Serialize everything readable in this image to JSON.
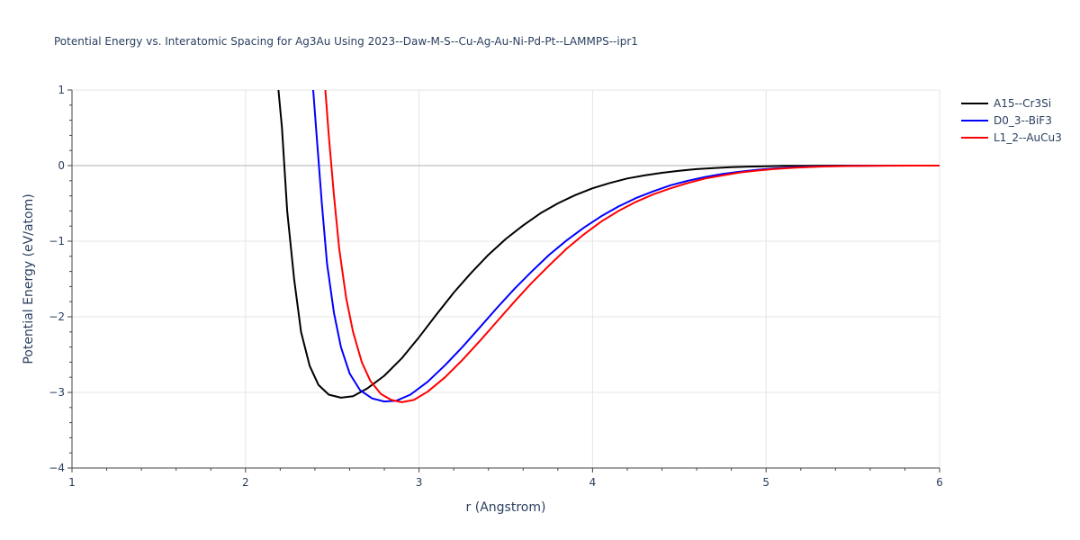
{
  "chart_data": {
    "type": "line",
    "title": "Potential Energy vs. Interatomic Spacing for Ag3Au Using 2023--Daw-M-S--Cu-Ag-Au-Ni-Pd-Pt--LAMMPS--ipr1",
    "xlabel": "r (Angstrom)",
    "ylabel": "Potential Energy (eV/atom)",
    "xlim": [
      1,
      6
    ],
    "ylim": [
      -4,
      1
    ],
    "x_ticks": [
      1,
      2,
      3,
      4,
      5,
      6
    ],
    "y_ticks": [
      -4,
      -3,
      -2,
      -1,
      0,
      1
    ],
    "x_tick_labels": [
      "1",
      "2",
      "3",
      "4",
      "5",
      "6"
    ],
    "y_tick_labels": [
      "−4",
      "−3",
      "−2",
      "−1",
      "0",
      "1"
    ],
    "grid": true,
    "legend_position": "top-right",
    "series": [
      {
        "name": "A15--Cr3Si",
        "color": "#000000",
        "points": [
          [
            2.19,
            1.0
          ],
          [
            2.21,
            0.5
          ],
          [
            2.24,
            -0.6
          ],
          [
            2.28,
            -1.5
          ],
          [
            2.32,
            -2.2
          ],
          [
            2.37,
            -2.65
          ],
          [
            2.42,
            -2.9
          ],
          [
            2.48,
            -3.03
          ],
          [
            2.55,
            -3.07
          ],
          [
            2.62,
            -3.05
          ],
          [
            2.7,
            -2.95
          ],
          [
            2.8,
            -2.78
          ],
          [
            2.9,
            -2.55
          ],
          [
            3.0,
            -2.27
          ],
          [
            3.1,
            -1.97
          ],
          [
            3.2,
            -1.68
          ],
          [
            3.3,
            -1.42
          ],
          [
            3.4,
            -1.18
          ],
          [
            3.5,
            -0.97
          ],
          [
            3.6,
            -0.79
          ],
          [
            3.7,
            -0.63
          ],
          [
            3.8,
            -0.5
          ],
          [
            3.9,
            -0.39
          ],
          [
            4.0,
            -0.3
          ],
          [
            4.1,
            -0.23
          ],
          [
            4.2,
            -0.17
          ],
          [
            4.3,
            -0.13
          ],
          [
            4.4,
            -0.095
          ],
          [
            4.5,
            -0.068
          ],
          [
            4.6,
            -0.047
          ],
          [
            4.7,
            -0.032
          ],
          [
            4.8,
            -0.021
          ],
          [
            4.9,
            -0.013
          ],
          [
            5.0,
            -0.008
          ],
          [
            5.1,
            -0.004
          ],
          [
            5.2,
            -0.002
          ],
          [
            5.4,
            0.0
          ],
          [
            6.0,
            0.0
          ]
        ]
      },
      {
        "name": "D0_3--BiF3",
        "color": "#0000ff",
        "points": [
          [
            2.39,
            1.0
          ],
          [
            2.41,
            0.4
          ],
          [
            2.44,
            -0.5
          ],
          [
            2.47,
            -1.3
          ],
          [
            2.51,
            -1.95
          ],
          [
            2.55,
            -2.4
          ],
          [
            2.6,
            -2.75
          ],
          [
            2.66,
            -2.97
          ],
          [
            2.73,
            -3.08
          ],
          [
            2.8,
            -3.12
          ],
          [
            2.87,
            -3.11
          ],
          [
            2.95,
            -3.03
          ],
          [
            3.05,
            -2.86
          ],
          [
            3.15,
            -2.64
          ],
          [
            3.25,
            -2.4
          ],
          [
            3.35,
            -2.14
          ],
          [
            3.45,
            -1.88
          ],
          [
            3.55,
            -1.63
          ],
          [
            3.65,
            -1.4
          ],
          [
            3.75,
            -1.18
          ],
          [
            3.85,
            -0.99
          ],
          [
            3.95,
            -0.82
          ],
          [
            4.05,
            -0.67
          ],
          [
            4.15,
            -0.54
          ],
          [
            4.25,
            -0.43
          ],
          [
            4.35,
            -0.34
          ],
          [
            4.45,
            -0.26
          ],
          [
            4.55,
            -0.2
          ],
          [
            4.65,
            -0.15
          ],
          [
            4.75,
            -0.11
          ],
          [
            4.85,
            -0.08
          ],
          [
            4.95,
            -0.055
          ],
          [
            5.05,
            -0.037
          ],
          [
            5.15,
            -0.024
          ],
          [
            5.25,
            -0.015
          ],
          [
            5.35,
            -0.008
          ],
          [
            5.5,
            -0.003
          ],
          [
            5.7,
            0.0
          ],
          [
            6.0,
            0.0
          ]
        ]
      },
      {
        "name": "L1_2--AuCu3",
        "color": "#ff0000",
        "points": [
          [
            2.46,
            1.0
          ],
          [
            2.48,
            0.4
          ],
          [
            2.51,
            -0.4
          ],
          [
            2.54,
            -1.1
          ],
          [
            2.58,
            -1.75
          ],
          [
            2.62,
            -2.2
          ],
          [
            2.67,
            -2.6
          ],
          [
            2.72,
            -2.85
          ],
          [
            2.78,
            -3.02
          ],
          [
            2.84,
            -3.1
          ],
          [
            2.9,
            -3.13
          ],
          [
            2.97,
            -3.1
          ],
          [
            3.05,
            -2.99
          ],
          [
            3.15,
            -2.8
          ],
          [
            3.25,
            -2.57
          ],
          [
            3.35,
            -2.32
          ],
          [
            3.45,
            -2.06
          ],
          [
            3.55,
            -1.8
          ],
          [
            3.65,
            -1.55
          ],
          [
            3.75,
            -1.32
          ],
          [
            3.85,
            -1.1
          ],
          [
            3.95,
            -0.91
          ],
          [
            4.05,
            -0.74
          ],
          [
            4.15,
            -0.6
          ],
          [
            4.25,
            -0.48
          ],
          [
            4.35,
            -0.38
          ],
          [
            4.45,
            -0.3
          ],
          [
            4.55,
            -0.23
          ],
          [
            4.65,
            -0.17
          ],
          [
            4.75,
            -0.13
          ],
          [
            4.85,
            -0.09
          ],
          [
            4.95,
            -0.065
          ],
          [
            5.05,
            -0.045
          ],
          [
            5.15,
            -0.03
          ],
          [
            5.25,
            -0.019
          ],
          [
            5.35,
            -0.011
          ],
          [
            5.5,
            -0.005
          ],
          [
            5.7,
            -0.001
          ],
          [
            6.0,
            0.0
          ]
        ]
      }
    ]
  }
}
